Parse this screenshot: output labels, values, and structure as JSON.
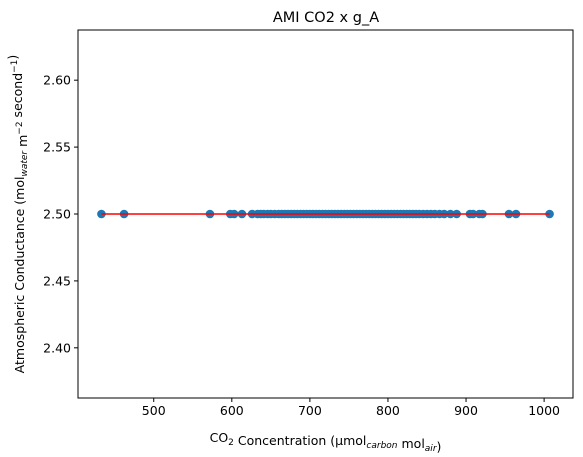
{
  "chart_data": {
    "type": "scatter",
    "title": "AMI CO2 x g_A",
    "xlabel": {
      "parts": [
        {
          "t": "CO"
        },
        {
          "t": "2",
          "sub": true
        },
        {
          "t": " Concentration (µmol"
        },
        {
          "t": "carbon",
          "sub": true,
          "italic": true
        },
        {
          "t": " mol"
        },
        {
          "t": "air",
          "sub": true,
          "italic": true
        },
        {
          "t": ")"
        }
      ]
    },
    "ylabel": {
      "parts": [
        {
          "t": "Atmospheric Conductance (mol"
        },
        {
          "t": "water",
          "sub": true,
          "italic": true
        },
        {
          "t": " m"
        },
        {
          "t": "−2",
          "sup": true
        },
        {
          "t": " second"
        },
        {
          "t": "−1",
          "sup": true
        },
        {
          "t": ")"
        }
      ]
    },
    "xlim": [
      403,
      1037
    ],
    "ylim": [
      2.3625,
      2.6375
    ],
    "xticks": [
      500,
      600,
      700,
      800,
      900,
      1000
    ],
    "yticks": [
      2.4,
      2.45,
      2.5,
      2.55,
      2.6
    ],
    "xtick_labels": [
      "500",
      "600",
      "700",
      "800",
      "900",
      "1000"
    ],
    "ytick_labels": [
      "2.40",
      "2.45",
      "2.50",
      "2.55",
      "2.60"
    ],
    "grid": false,
    "series": [
      {
        "kind": "points",
        "color": "#1f77b4",
        "x": [
          433,
          462,
          572,
          598,
          603,
          613,
          626,
          633,
          637,
          641,
          646,
          650,
          655,
          660,
          664,
          668,
          672,
          676,
          680,
          684,
          688,
          692,
          696,
          700,
          704,
          708,
          712,
          716,
          720,
          724,
          728,
          732,
          736,
          740,
          744,
          748,
          752,
          756,
          760,
          764,
          768,
          772,
          776,
          780,
          784,
          788,
          792,
          796,
          800,
          804,
          808,
          812,
          816,
          820,
          824,
          828,
          832,
          836,
          840,
          845,
          850,
          855,
          860,
          866,
          872,
          880,
          888,
          905,
          909,
          917,
          921,
          955,
          964,
          1007
        ],
        "y": [
          2.5,
          2.5,
          2.5,
          2.5,
          2.5,
          2.5,
          2.5,
          2.5,
          2.5,
          2.5,
          2.5,
          2.5,
          2.5,
          2.5,
          2.5,
          2.5,
          2.5,
          2.5,
          2.5,
          2.5,
          2.5,
          2.5,
          2.5,
          2.5,
          2.5,
          2.5,
          2.5,
          2.5,
          2.5,
          2.5,
          2.5,
          2.5,
          2.5,
          2.5,
          2.5,
          2.5,
          2.5,
          2.5,
          2.5,
          2.5,
          2.5,
          2.5,
          2.5,
          2.5,
          2.5,
          2.5,
          2.5,
          2.5,
          2.5,
          2.5,
          2.5,
          2.5,
          2.5,
          2.5,
          2.5,
          2.5,
          2.5,
          2.5,
          2.5,
          2.5,
          2.5,
          2.5,
          2.5,
          2.5,
          2.5,
          2.5,
          2.5,
          2.5,
          2.5,
          2.5,
          2.5,
          2.5,
          2.5,
          2.5
        ]
      },
      {
        "kind": "line",
        "color": "#ff0000",
        "x": [
          433,
          1007
        ],
        "y": [
          2.5,
          2.5
        ]
      }
    ]
  }
}
